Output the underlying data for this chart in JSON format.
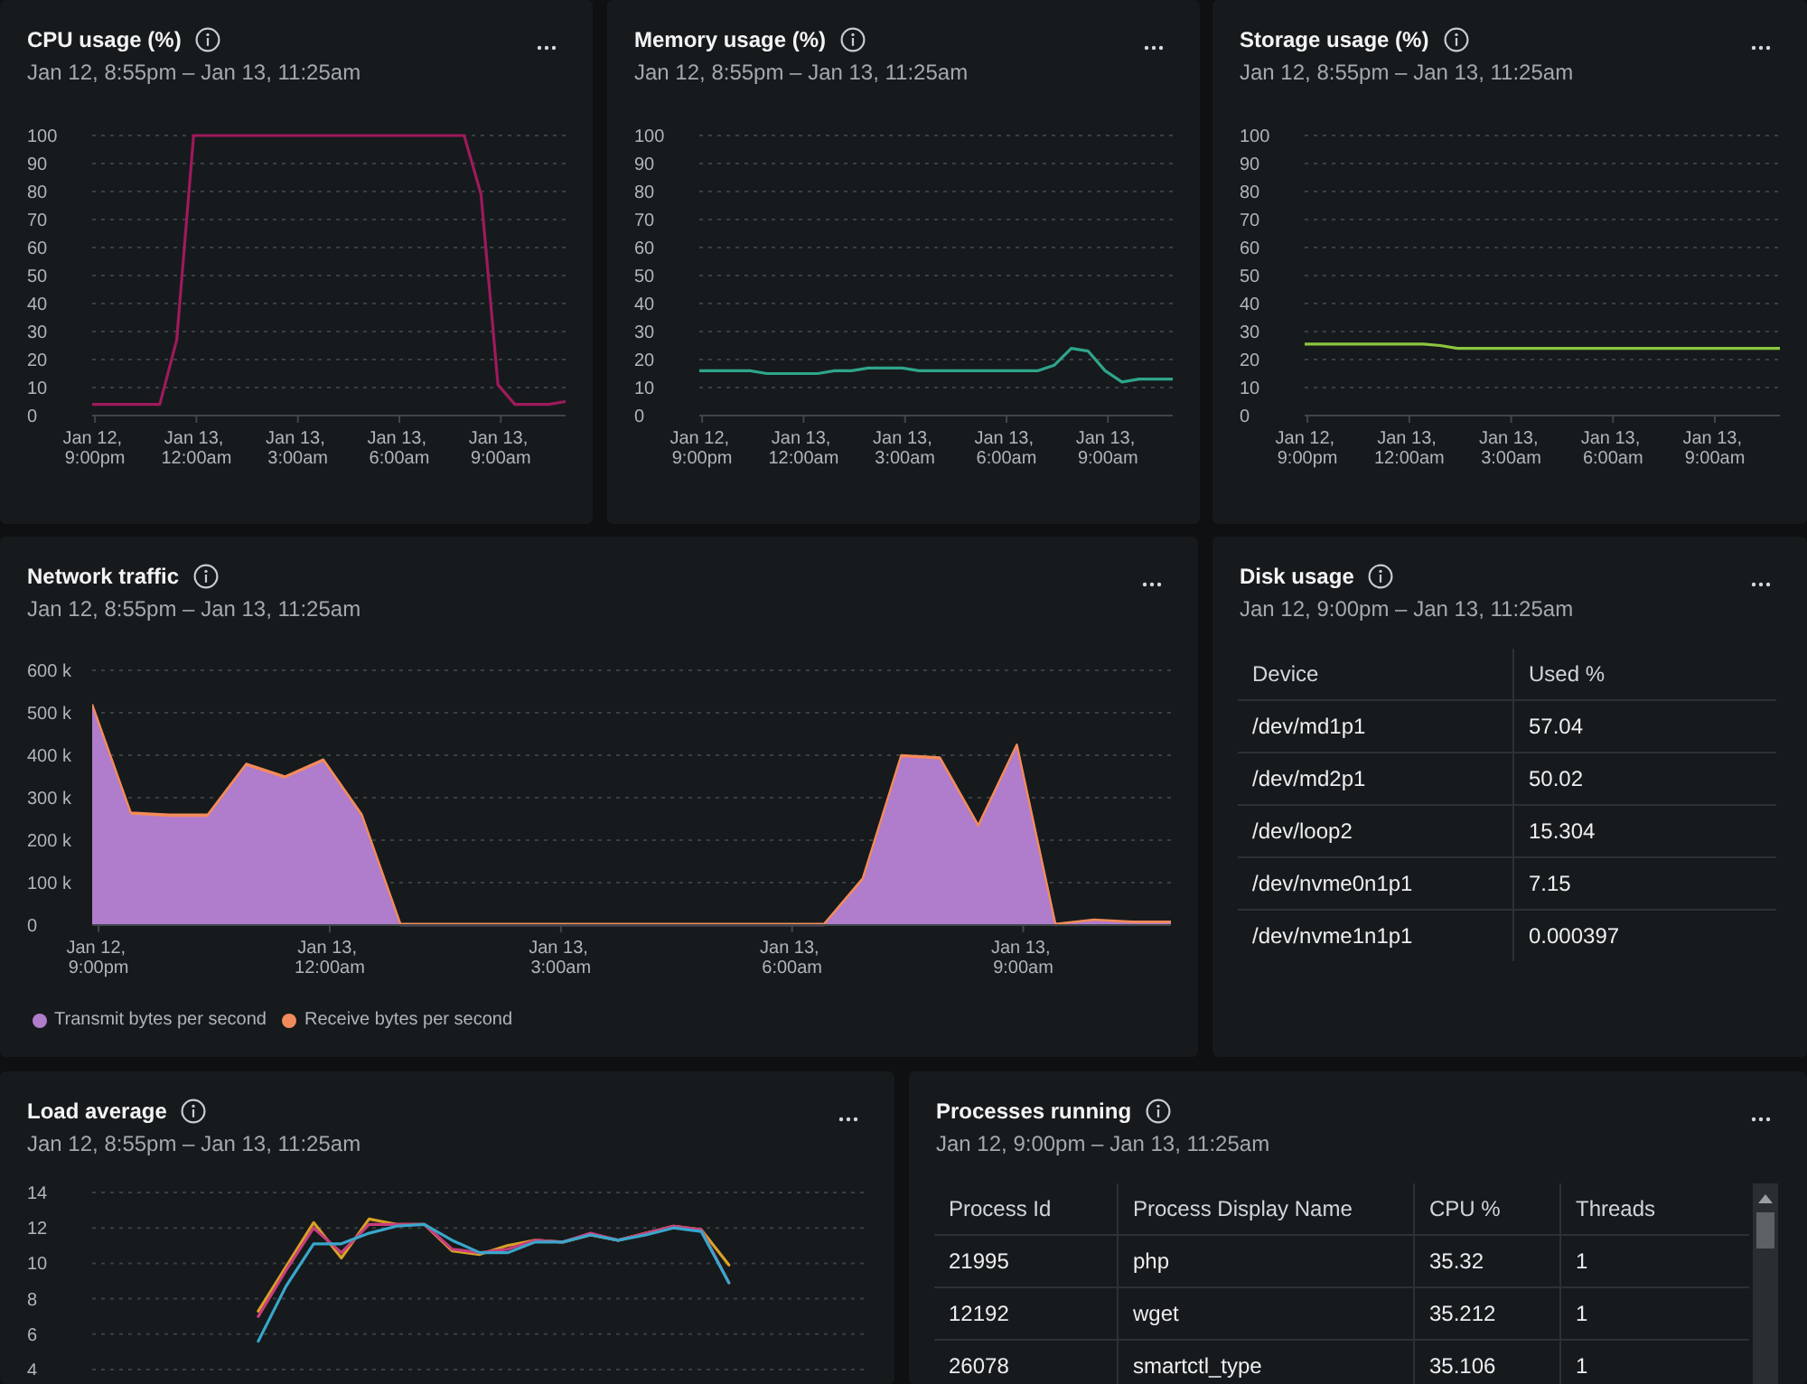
{
  "chart_data": [
    {
      "type": "line",
      "title": "CPU usage (%)",
      "subtitle": "Jan 12, 8:55pm – Jan 13, 11:25am",
      "x": [
        "--01-12T20:55",
        "--01-12T21:25",
        "--01-12T21:55",
        "--01-12T22:25",
        "--01-12T22:55",
        "--01-12T23:25",
        "--01-12T23:55",
        "--01-13T00:25",
        "--01-13T00:55",
        "--01-13T01:25",
        "--01-13T01:55",
        "--01-13T02:25",
        "--01-13T02:55",
        "--01-13T03:25",
        "--01-13T03:55",
        "--01-13T04:25",
        "--01-13T04:55",
        "--01-13T05:25",
        "--01-13T05:55",
        "--01-13T06:25",
        "--01-13T06:55",
        "--01-13T07:25",
        "--01-13T07:55",
        "--01-13T08:25",
        "--01-13T08:55",
        "--01-13T09:25",
        "--01-13T09:55",
        "--01-13T10:25",
        "--01-13T10:55"
      ],
      "series": [
        {
          "color": "#9e1a5b",
          "values": [
            4,
            4,
            4,
            4,
            4,
            27,
            100,
            100,
            100,
            100,
            100,
            100,
            100,
            100,
            100,
            100,
            100,
            100,
            100,
            100,
            100,
            100,
            100,
            79,
            11,
            4,
            4,
            4,
            5
          ]
        }
      ],
      "xlim": [
        "--01-12T20:55",
        "--01-13T10:55"
      ],
      "xticks": [
        {
          "value": "--01-12T21:00",
          "label": "Jan 12, 9:00pm"
        },
        {
          "value": "--01-13T00:00",
          "label": "Jan 13, 12:00am"
        },
        {
          "value": "--01-13T03:00",
          "label": "Jan 13, 3:00am"
        },
        {
          "value": "--01-13T06:00",
          "label": "Jan 13, 6:00am"
        },
        {
          "value": "--01-13T09:00",
          "label": "Jan 13, 9:00am"
        }
      ],
      "ylim": [
        0,
        100
      ],
      "yticks": [
        0,
        10,
        20,
        30,
        40,
        50,
        60,
        70,
        80,
        90,
        100
      ],
      "grid": "y"
    },
    {
      "type": "line",
      "title": "Memory usage (%)",
      "subtitle": "Jan 12, 8:55pm – Jan 13, 11:25am",
      "x": [
        "--01-12T20:55",
        "--01-12T21:25",
        "--01-12T21:55",
        "--01-12T22:25",
        "--01-12T22:55",
        "--01-12T23:25",
        "--01-12T23:55",
        "--01-13T00:25",
        "--01-13T00:55",
        "--01-13T01:25",
        "--01-13T01:55",
        "--01-13T02:25",
        "--01-13T02:55",
        "--01-13T03:25",
        "--01-13T03:55",
        "--01-13T04:25",
        "--01-13T04:55",
        "--01-13T05:25",
        "--01-13T05:55",
        "--01-13T06:25",
        "--01-13T06:55",
        "--01-13T07:25",
        "--01-13T07:55",
        "--01-13T08:25",
        "--01-13T08:55",
        "--01-13T09:25",
        "--01-13T09:55",
        "--01-13T10:25",
        "--01-13T10:55"
      ],
      "series": [
        {
          "color": "#2fa58b",
          "values": [
            16,
            16,
            16,
            16,
            15,
            15,
            15,
            15,
            16,
            16,
            17,
            17,
            17,
            16,
            16,
            16,
            16,
            16,
            16,
            16,
            16,
            18,
            24,
            23,
            16,
            12,
            13,
            13,
            13
          ]
        }
      ],
      "xlim": [
        "--01-12T20:55",
        "--01-13T10:55"
      ],
      "xticks": [
        {
          "value": "--01-12T21:00",
          "label": "Jan 12, 9:00pm"
        },
        {
          "value": "--01-13T00:00",
          "label": "Jan 13, 12:00am"
        },
        {
          "value": "--01-13T03:00",
          "label": "Jan 13, 3:00am"
        },
        {
          "value": "--01-13T06:00",
          "label": "Jan 13, 6:00am"
        },
        {
          "value": "--01-13T09:00",
          "label": "Jan 13, 9:00am"
        }
      ],
      "ylim": [
        0,
        100
      ],
      "yticks": [
        0,
        10,
        20,
        30,
        40,
        50,
        60,
        70,
        80,
        90,
        100
      ],
      "grid": "y"
    },
    {
      "type": "line",
      "title": "Storage usage (%)",
      "subtitle": "Jan 12, 8:55pm – Jan 13, 11:25am",
      "x": [
        "--01-12T20:55",
        "--01-12T21:25",
        "--01-12T21:55",
        "--01-12T22:25",
        "--01-12T22:55",
        "--01-12T23:25",
        "--01-12T23:55",
        "--01-13T00:25",
        "--01-13T00:55",
        "--01-13T01:25",
        "--01-13T01:55",
        "--01-13T02:25",
        "--01-13T02:55",
        "--01-13T03:25",
        "--01-13T03:55",
        "--01-13T04:25",
        "--01-13T04:55",
        "--01-13T05:25",
        "--01-13T05:55",
        "--01-13T06:25",
        "--01-13T06:55",
        "--01-13T07:25",
        "--01-13T07:55",
        "--01-13T08:25",
        "--01-13T08:55",
        "--01-13T09:25",
        "--01-13T09:55",
        "--01-13T10:25",
        "--01-13T10:55"
      ],
      "series": [
        {
          "color": "#8cc63f",
          "values": [
            25.5,
            25.5,
            25.5,
            25.5,
            25.5,
            25.5,
            25.5,
            25.5,
            25,
            24,
            24,
            24,
            24,
            24,
            24,
            24,
            24,
            24,
            24,
            24,
            24,
            24,
            24,
            24,
            24,
            24,
            24,
            24,
            24
          ]
        }
      ],
      "xlim": [
        "--01-12T20:55",
        "--01-13T10:55"
      ],
      "xticks": [
        {
          "value": "--01-12T21:00",
          "label": "Jan 12, 9:00pm"
        },
        {
          "value": "--01-13T00:00",
          "label": "Jan 13, 12:00am"
        },
        {
          "value": "--01-13T03:00",
          "label": "Jan 13, 3:00am"
        },
        {
          "value": "--01-13T06:00",
          "label": "Jan 13, 6:00am"
        },
        {
          "value": "--01-13T09:00",
          "label": "Jan 13, 9:00am"
        }
      ],
      "ylim": [
        0,
        100
      ],
      "yticks": [
        0,
        10,
        20,
        30,
        40,
        50,
        60,
        70,
        80,
        90,
        100
      ],
      "grid": "y"
    },
    {
      "type": "area",
      "stacked": true,
      "title": "Network traffic",
      "subtitle": "Jan 12, 8:55pm – Jan 13, 11:25am",
      "x": [
        "--01-12T20:55",
        "--01-12T21:25",
        "--01-12T21:55",
        "--01-12T22:25",
        "--01-12T22:55",
        "--01-12T23:25",
        "--01-12T23:55",
        "--01-13T00:25",
        "--01-13T00:55",
        "--01-13T01:25",
        "--01-13T01:55",
        "--01-13T02:25",
        "--01-13T02:55",
        "--01-13T03:25",
        "--01-13T03:55",
        "--01-13T04:25",
        "--01-13T04:55",
        "--01-13T05:25",
        "--01-13T05:55",
        "--01-13T06:25",
        "--01-13T06:55",
        "--01-13T07:25",
        "--01-13T07:55",
        "--01-13T08:25",
        "--01-13T08:55",
        "--01-13T09:25",
        "--01-13T09:55",
        "--01-13T10:25",
        "--01-13T10:55"
      ],
      "series": [
        {
          "name": "Transmit bytes per second",
          "color": "#b07ccc",
          "values": [
            515000,
            260000,
            255000,
            255000,
            375000,
            345000,
            385000,
            255000,
            0,
            0,
            0,
            0,
            0,
            0,
            0,
            0,
            0,
            0,
            0,
            0,
            105000,
            395000,
            390000,
            230000,
            420000,
            0,
            10000,
            5000,
            5000
          ]
        },
        {
          "name": "Receive bytes per second",
          "color": "#f28b5b",
          "values": [
            5000,
            5000,
            5000,
            5000,
            5000,
            5000,
            5000,
            5000,
            3000,
            3000,
            3000,
            3000,
            3000,
            3000,
            3000,
            3000,
            3000,
            3000,
            3000,
            3000,
            5000,
            5000,
            5000,
            5000,
            5000,
            3000,
            3000,
            3000,
            3000
          ]
        }
      ],
      "xlim": [
        "--01-12T20:55",
        "--01-13T10:55"
      ],
      "xticks": [
        {
          "value": "--01-12T21:00",
          "label": "Jan 12, 9:00pm"
        },
        {
          "value": "--01-13T00:00",
          "label": "Jan 13, 12:00am"
        },
        {
          "value": "--01-13T03:00",
          "label": "Jan 13, 3:00am"
        },
        {
          "value": "--01-13T06:00",
          "label": "Jan 13, 6:00am"
        },
        {
          "value": "--01-13T09:00",
          "label": "Jan 13, 9:00am"
        }
      ],
      "ylim": [
        0,
        600000
      ],
      "yticks": [
        0,
        {
          "value": 100000,
          "label": "100 k"
        },
        {
          "value": 200000,
          "label": "200 k"
        },
        {
          "value": 300000,
          "label": "300 k"
        },
        {
          "value": 400000,
          "label": "400 k"
        },
        {
          "value": 500000,
          "label": "500 k"
        },
        {
          "value": 600000,
          "label": "600 k"
        }
      ],
      "grid": "y",
      "legend": "bottom left"
    },
    {
      "type": "other",
      "title": "Disk usage",
      "subtitle": "Jan 12, 9:00pm – Jan 13, 11:25am",
      "xlabel": "Device",
      "ylabel": "Used %",
      "categories": [
        "/dev/md1p1",
        "/dev/md2p1",
        "/dev/loop2",
        "/dev/nvme0n1p1",
        "/dev/nvme1n1p1"
      ],
      "values": [
        57.04,
        50.02,
        15.304,
        7.15,
        0.000397
      ],
      "data_labels": true
    },
    {
      "type": "line",
      "title": "Load average",
      "subtitle": "Jan 12, 8:55pm – Jan 13, 11:25am",
      "categories": [
        null,
        null,
        null,
        null,
        null,
        null,
        null,
        null,
        null,
        null,
        null,
        null,
        null,
        null,
        null,
        null,
        null,
        null,
        null,
        null,
        null,
        null,
        null,
        null,
        null,
        null,
        null,
        null,
        null
      ],
      "series": [
        {
          "color": "#d9a225",
          "values": [
            null,
            null,
            null,
            null,
            null,
            null,
            7.3,
            9.8,
            12.3,
            10.3,
            12.5,
            12.2,
            12.2,
            10.7,
            10.5,
            11.0,
            11.3,
            11.2,
            11.6,
            11.3,
            11.7,
            12.1,
            11.9,
            9.9,
            null,
            null,
            null,
            null,
            null
          ]
        },
        {
          "color": "#c83e7d",
          "values": [
            null,
            null,
            null,
            null,
            null,
            null,
            7.0,
            9.6,
            12.0,
            10.6,
            12.2,
            12.2,
            12.2,
            10.8,
            10.6,
            10.8,
            11.3,
            11.2,
            11.7,
            11.3,
            11.7,
            12.1,
            11.9,
            8.9,
            null,
            null,
            null,
            null,
            null
          ]
        },
        {
          "color": "#39a7cc",
          "values": [
            null,
            null,
            null,
            null,
            null,
            null,
            5.6,
            8.7,
            11.1,
            11.1,
            11.7,
            12.1,
            12.2,
            11.3,
            10.6,
            10.6,
            11.2,
            11.2,
            11.6,
            11.3,
            11.6,
            12.0,
            11.8,
            8.9,
            null,
            null,
            null,
            null,
            null
          ]
        }
      ],
      "ylim": [
        4,
        14
      ],
      "yticks": [
        4,
        6,
        8,
        10,
        12,
        14
      ],
      "grid": "y",
      "tick_labels": "y"
    },
    {
      "type": "other",
      "title": "Processes running",
      "subtitle": "Jan 12, 9:00pm – Jan 13, 11:25am",
      "categories": [
        "Process Id",
        "Process Display Name",
        "CPU %",
        "Threads"
      ],
      "cell_labels": [
        [
          "21995",
          "php",
          "35.32",
          "1"
        ],
        [
          "12192",
          "wget",
          "35.212",
          "1"
        ],
        [
          "26078",
          "smartctl_type",
          "35.106",
          "1"
        ]
      ]
    }
  ]
}
